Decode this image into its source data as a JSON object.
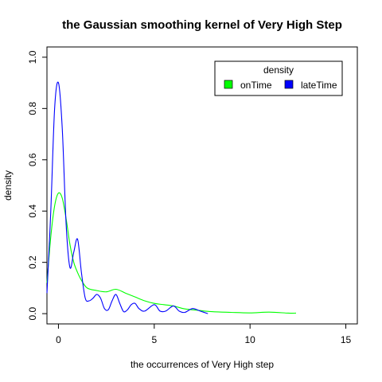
{
  "chart_data": {
    "type": "line",
    "title": "the Gaussian smoothing kernel of Very High Step",
    "xlabel": "the occurrences of Very High step",
    "ylabel": "density",
    "xlim": [
      -0.6,
      15.6
    ],
    "ylim": [
      -0.04,
      1.04
    ],
    "x_ticks": [
      0,
      5,
      10,
      15
    ],
    "y_ticks": [
      0.0,
      0.2,
      0.4,
      0.6,
      0.8,
      1.0
    ],
    "x_tick_labels": [
      "0",
      "5",
      "10",
      "15"
    ],
    "y_tick_labels": [
      "0.0",
      "0.2",
      "0.4",
      "0.6",
      "0.8",
      "1.0"
    ],
    "grid": false,
    "legend": {
      "title": "density",
      "position": "top-right",
      "entries": [
        {
          "name": "onTime",
          "color": "#00ff00"
        },
        {
          "name": "lateTime",
          "color": "#0000ff"
        }
      ]
    },
    "series": [
      {
        "name": "onTime",
        "color": "#00ff00",
        "x": [
          -0.6,
          -0.4,
          -0.2,
          0.0,
          0.2,
          0.4,
          0.6,
          0.8,
          1.0,
          1.2,
          1.5,
          2.0,
          2.5,
          3.0,
          3.5,
          4.0,
          4.5,
          5.0,
          5.5,
          6.0,
          6.5,
          7.0,
          8.0,
          9.0,
          10.0,
          11.0,
          12.0,
          12.4
        ],
        "y": [
          0.12,
          0.3,
          0.42,
          0.47,
          0.45,
          0.37,
          0.27,
          0.2,
          0.16,
          0.13,
          0.1,
          0.09,
          0.085,
          0.095,
          0.08,
          0.065,
          0.05,
          0.04,
          0.035,
          0.03,
          0.02,
          0.015,
          0.008,
          0.005,
          0.003,
          0.006,
          0.002,
          0.002
        ]
      },
      {
        "name": "lateTime",
        "color": "#0000ff",
        "x": [
          -0.6,
          -0.4,
          -0.2,
          0.0,
          0.2,
          0.4,
          0.6,
          0.8,
          1.0,
          1.2,
          1.4,
          1.6,
          1.8,
          2.0,
          2.2,
          2.4,
          2.6,
          2.8,
          3.0,
          3.2,
          3.4,
          3.6,
          3.8,
          4.0,
          4.2,
          4.5,
          5.0,
          5.3,
          5.6,
          6.0,
          6.3,
          6.6,
          7.0,
          7.4,
          7.8
        ],
        "y": [
          0.08,
          0.4,
          0.8,
          0.9,
          0.72,
          0.35,
          0.18,
          0.24,
          0.29,
          0.16,
          0.06,
          0.05,
          0.06,
          0.075,
          0.06,
          0.02,
          0.015,
          0.05,
          0.075,
          0.04,
          0.008,
          0.015,
          0.035,
          0.04,
          0.02,
          0.01,
          0.035,
          0.01,
          0.01,
          0.03,
          0.01,
          0.005,
          0.02,
          0.01,
          0.0
        ]
      }
    ]
  }
}
